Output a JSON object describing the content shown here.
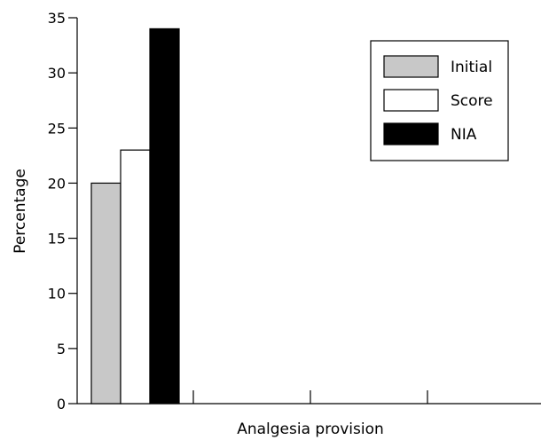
{
  "chart_data": {
    "type": "bar",
    "categories": [
      ""
    ],
    "series": [
      {
        "name": "Initial",
        "values": [
          20
        ],
        "color": "#c8c8c8"
      },
      {
        "name": "Score",
        "values": [
          23
        ],
        "color": "#ffffff"
      },
      {
        "name": "NIA",
        "values": [
          34
        ],
        "color": "#000000"
      }
    ],
    "xlabel": "Analgesia provision",
    "ylabel": "Percentage",
    "ylim": [
      0,
      35
    ],
    "yticks": [
      0,
      5,
      10,
      15,
      20,
      25,
      30,
      35
    ],
    "grid": false,
    "legend_position": "top-right"
  }
}
